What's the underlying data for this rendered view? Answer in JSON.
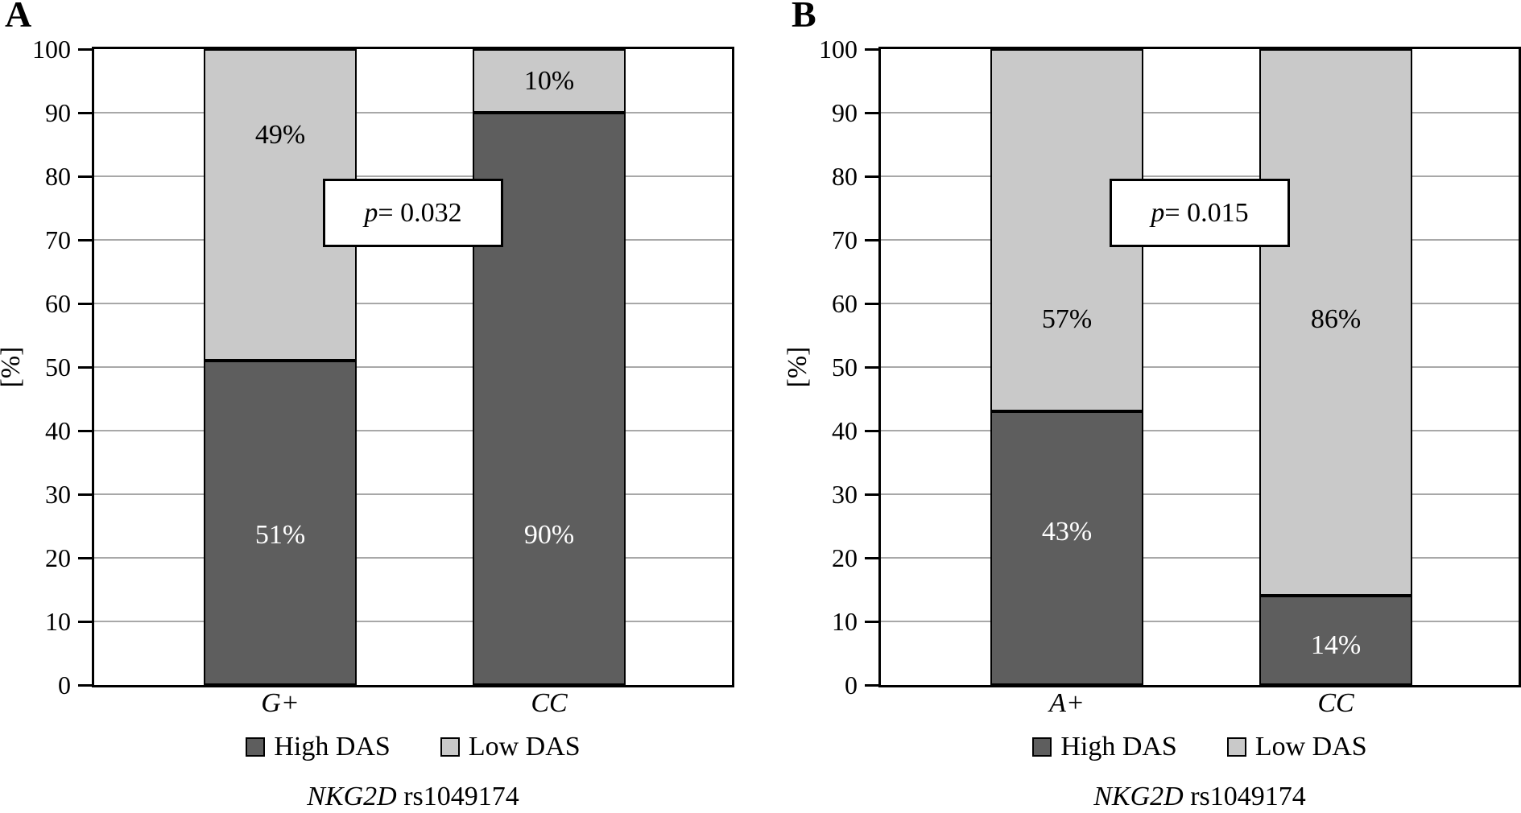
{
  "figure": {
    "background": "#ffffff",
    "frame_color": "#000000",
    "gridline_color": "#a8a8a8"
  },
  "chart_data": [
    {
      "type": "bar",
      "stacked": true,
      "panel_label": "A",
      "categories": [
        "G+",
        "CC"
      ],
      "series": [
        {
          "name": "High DAS",
          "color": "#5e5e5e",
          "values": [
            51,
            90
          ],
          "labels": [
            "51%",
            "90%"
          ],
          "label_at": [
            23.5,
            23.5
          ],
          "label_color": "#ffffff"
        },
        {
          "name": "Low DAS",
          "color": "#c9c9c9",
          "values": [
            49,
            10
          ],
          "labels": [
            "49%",
            "10%"
          ],
          "label_at": [
            86.5,
            95
          ],
          "label_color": "#000000"
        }
      ],
      "annotation": {
        "symbol": "p",
        "text": " = 0.032"
      },
      "ylabel": "[%]",
      "ylim": [
        0,
        100
      ],
      "yticks": [
        0,
        10,
        20,
        30,
        40,
        50,
        60,
        70,
        80,
        90,
        100
      ],
      "grid": true,
      "legend_position": "bottom",
      "xlabel_gene": "NKG2D",
      "xlabel_rest": " rs1049174"
    },
    {
      "type": "bar",
      "stacked": true,
      "panel_label": "B",
      "categories": [
        "A+",
        "CC"
      ],
      "series": [
        {
          "name": "High DAS",
          "color": "#5e5e5e",
          "values": [
            43,
            14
          ],
          "labels": [
            "43%",
            "14%"
          ],
          "label_at": [
            24,
            6.2
          ],
          "label_color": "#ffffff"
        },
        {
          "name": "Low DAS",
          "color": "#c9c9c9",
          "values": [
            57,
            86
          ],
          "labels": [
            "57%",
            "86%"
          ],
          "label_at": [
            57.5,
            57.5
          ],
          "label_color": "#000000"
        }
      ],
      "annotation": {
        "symbol": "p",
        "text": " = 0.015"
      },
      "ylabel": "[%]",
      "ylim": [
        0,
        100
      ],
      "yticks": [
        0,
        10,
        20,
        30,
        40,
        50,
        60,
        70,
        80,
        90,
        100
      ],
      "grid": true,
      "legend_position": "bottom",
      "xlabel_gene": "NKG2D",
      "xlabel_rest": " rs1049174"
    }
  ]
}
